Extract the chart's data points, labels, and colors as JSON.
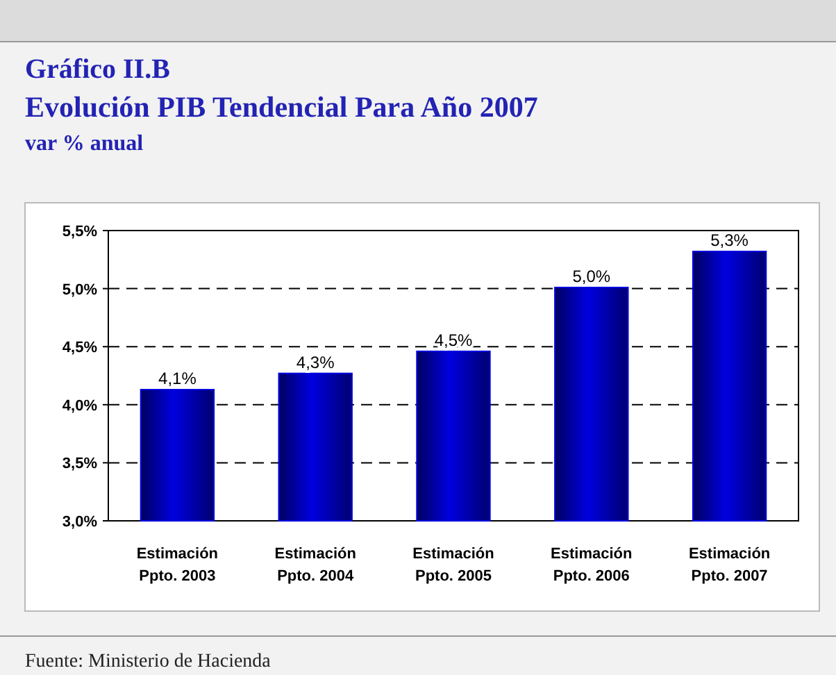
{
  "chart_data": {
    "type": "bar",
    "title": "Gráfico II.B\nEvolución PIB Tendencial Para Año 2007",
    "subtitle": "var % anual",
    "categories": [
      "Estimación\nPpto. 2003",
      "Estimación\nPpto. 2004",
      "Estimación\nPpto. 2005",
      "Estimación\nPpto. 2006",
      "Estimación\nPpto. 2007"
    ],
    "values": [
      4.13,
      4.27,
      4.46,
      5.01,
      5.32
    ],
    "value_labels": [
      "4,1%",
      "4,3%",
      "4,5%",
      "5,0%",
      "5,3%"
    ],
    "color": "#0000e0",
    "ylim": [
      3.0,
      5.5
    ],
    "yticks": [
      {
        "value": 3.0,
        "label": "3,0%"
      },
      {
        "value": 3.5,
        "label": "3,5%"
      },
      {
        "value": 4.0,
        "label": "4,0%"
      },
      {
        "value": 4.5,
        "label": "4,5%"
      },
      {
        "value": 5.0,
        "label": "5,0%"
      },
      {
        "value": 5.5,
        "label": "5,5%"
      }
    ],
    "grid": "y",
    "annotations": [
      "Fuente: Ministerio de Hacienda"
    ]
  }
}
